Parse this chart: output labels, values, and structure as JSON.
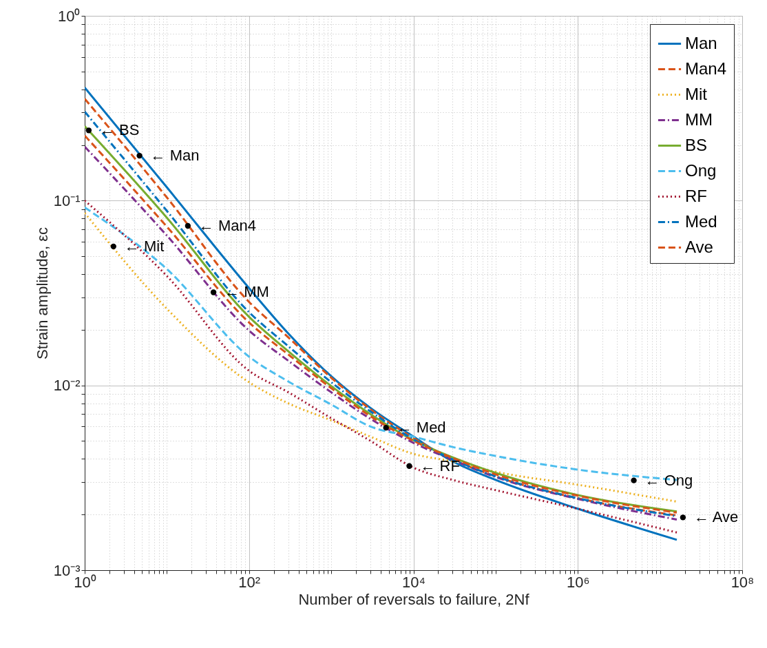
{
  "chart_data": {
    "type": "line",
    "xlabel": "Number of reversals to failure, 2Nf",
    "ylabel": "Strain amplitude, εc",
    "log": "xy",
    "grid": true,
    "legend": "top right",
    "x": [
      1,
      10,
      100,
      300,
      1000,
      3000,
      10000,
      30000,
      100000,
      1000000,
      16000000
    ],
    "series": [
      {
        "name": "Man",
        "color": "#0072bd",
        "line_style": "solid",
        "values": [
          0.409,
          0.118,
          0.0336,
          0.0191,
          0.0112,
          0.00755,
          0.00528,
          0.00388,
          0.00308,
          0.00215,
          0.00146
        ]
      },
      {
        "name": "Man4",
        "color": "#d95319",
        "line_style": "dashed",
        "values": [
          0.356,
          0.104,
          0.0283,
          0.0182,
          0.011,
          0.00742,
          0.00519,
          0.00398,
          0.00322,
          0.00245,
          0.00198
        ]
      },
      {
        "name": "Mit",
        "color": "#edb120",
        "line_style": "dotted",
        "values": [
          0.0858,
          0.026,
          0.0104,
          0.008,
          0.00647,
          0.00528,
          0.00426,
          0.00388,
          0.00341,
          0.0029,
          0.00235
        ]
      },
      {
        "name": "MM",
        "color": "#7e2f8e",
        "line_style": "dashdot",
        "values": [
          0.196,
          0.0647,
          0.0198,
          0.0136,
          0.00918,
          0.00659,
          0.00489,
          0.00395,
          0.00319,
          0.00243,
          0.00188
        ]
      },
      {
        "name": "BS",
        "color": "#77ac30",
        "line_style": "solid",
        "values": [
          0.253,
          0.0808,
          0.0235,
          0.0153,
          0.00992,
          0.00699,
          0.00505,
          0.00408,
          0.00336,
          0.00255,
          0.00208
        ]
      },
      {
        "name": "Ong",
        "color": "#4dbeee",
        "line_style": "dashed",
        "values": [
          0.0918,
          0.0426,
          0.0143,
          0.0105,
          0.00788,
          0.00599,
          0.00528,
          0.00464,
          0.00415,
          0.0035,
          0.00308
        ]
      },
      {
        "name": "RF",
        "color": "#a2142f",
        "line_style": "dotted",
        "values": [
          0.1,
          0.0391,
          0.012,
          0.00918,
          0.00664,
          0.00501,
          0.00359,
          0.00308,
          0.00271,
          0.00215,
          0.0016
        ]
      },
      {
        "name": "Med",
        "color": "#0072bd",
        "line_style": "dashdot",
        "values": [
          0.303,
          0.088,
          0.0249,
          0.0163,
          0.0104,
          0.00723,
          0.0051,
          0.00398,
          0.00322,
          0.00245,
          0.00196
        ]
      },
      {
        "name": "Ave",
        "color": "#d95319",
        "line_style": "dashed",
        "values": [
          0.225,
          0.0723,
          0.0219,
          0.0147,
          0.00966,
          0.00681,
          0.00501,
          0.00405,
          0.0033,
          0.00253,
          0.00205
        ]
      }
    ],
    "annotations": [
      {
        "text": "← BS",
        "x": 1.12,
        "y": 0.24
      },
      {
        "text": "← Man",
        "x": 4.64,
        "y": 0.175
      },
      {
        "text": "← Man4",
        "x": 18,
        "y": 0.073
      },
      {
        "text": "← Mit",
        "x": 2.24,
        "y": 0.0565
      },
      {
        "text": "← MM",
        "x": 36.9,
        "y": 0.0319
      },
      {
        "text": "← Med",
        "x": 4640,
        "y": 0.0059
      },
      {
        "text": "← RF",
        "x": 8900,
        "y": 0.00366
      },
      {
        "text": "← Ong",
        "x": 4800000,
        "y": 0.00306
      },
      {
        "text": "← Ave",
        "x": 19000000,
        "y": 0.00193
      }
    ],
    "xlim": [
      1,
      100000000
    ],
    "ylim": [
      0.001,
      1
    ],
    "xticks": [
      {
        "value": 1,
        "label": "10⁰"
      },
      {
        "value": 2,
        "label": null
      },
      {
        "value": 3,
        "label": null
      },
      {
        "value": 4,
        "label": null
      },
      {
        "value": 5,
        "label": null
      },
      {
        "value": 6,
        "label": null
      },
      {
        "value": 7,
        "label": null
      },
      {
        "value": 8,
        "label": null
      },
      {
        "value": 9,
        "label": null
      },
      {
        "value": 10,
        "label": null
      },
      {
        "value": 20,
        "label": null
      },
      {
        "value": 30,
        "label": null
      },
      {
        "value": 40,
        "label": null
      },
      {
        "value": 50,
        "label": null
      },
      {
        "value": 60,
        "label": null
      },
      {
        "value": 70,
        "label": null
      },
      {
        "value": 80,
        "label": null
      },
      {
        "value": 90,
        "label": null
      },
      {
        "value": 100,
        "label": "10²"
      },
      {
        "value": 200,
        "label": null
      },
      {
        "value": 300,
        "label": null
      },
      {
        "value": 400,
        "label": null
      },
      {
        "value": 500,
        "label": null
      },
      {
        "value": 600,
        "label": null
      },
      {
        "value": 700,
        "label": null
      },
      {
        "value": 800,
        "label": null
      },
      {
        "value": 900,
        "label": null
      },
      {
        "value": 1000,
        "label": null
      },
      {
        "value": 2000,
        "label": null
      },
      {
        "value": 3000,
        "label": null
      },
      {
        "value": 4000,
        "label": null
      },
      {
        "value": 5000,
        "label": null
      },
      {
        "value": 6000,
        "label": null
      },
      {
        "value": 7000,
        "label": null
      },
      {
        "value": 8000,
        "label": null
      },
      {
        "value": 9000,
        "label": null
      },
      {
        "value": 10000,
        "label": "10⁴"
      },
      {
        "value": 20000,
        "label": null
      },
      {
        "value": 30000,
        "label": null
      },
      {
        "value": 40000,
        "label": null
      },
      {
        "value": 50000,
        "label": null
      },
      {
        "value": 60000,
        "label": null
      },
      {
        "value": 70000,
        "label": null
      },
      {
        "value": 80000,
        "label": null
      },
      {
        "value": 90000,
        "label": null
      },
      {
        "value": 100000,
        "label": null
      },
      {
        "value": 200000,
        "label": null
      },
      {
        "value": 300000,
        "label": null
      },
      {
        "value": 400000,
        "label": null
      },
      {
        "value": 500000,
        "label": null
      },
      {
        "value": 600000,
        "label": null
      },
      {
        "value": 700000,
        "label": null
      },
      {
        "value": 800000,
        "label": null
      },
      {
        "value": 900000,
        "label": null
      },
      {
        "value": 1000000,
        "label": "10⁶"
      },
      {
        "value": 2000000,
        "label": null
      },
      {
        "value": 3000000,
        "label": null
      },
      {
        "value": 4000000,
        "label": null
      },
      {
        "value": 5000000,
        "label": null
      },
      {
        "value": 6000000,
        "label": null
      },
      {
        "value": 7000000,
        "label": null
      },
      {
        "value": 8000000,
        "label": null
      },
      {
        "value": 9000000,
        "label": null
      },
      {
        "value": 10000000,
        "label": null
      },
      {
        "value": 20000000,
        "label": null
      },
      {
        "value": 30000000,
        "label": null
      },
      {
        "value": 40000000,
        "label": null
      },
      {
        "value": 50000000,
        "label": null
      },
      {
        "value": 60000000,
        "label": null
      },
      {
        "value": 70000000,
        "label": null
      },
      {
        "value": 80000000,
        "label": null
      },
      {
        "value": 90000000,
        "label": null
      },
      {
        "value": 100000000,
        "label": "10⁸"
      }
    ],
    "yticks": [
      {
        "value": 0.001,
        "label": "10⁻³"
      },
      {
        "value": 0.002,
        "label": null
      },
      {
        "value": 0.003,
        "label": null
      },
      {
        "value": 0.004,
        "label": null
      },
      {
        "value": 0.005,
        "label": null
      },
      {
        "value": 0.006,
        "label": null
      },
      {
        "value": 0.007,
        "label": null
      },
      {
        "value": 0.008,
        "label": null
      },
      {
        "value": 0.009,
        "label": null
      },
      {
        "value": 0.01,
        "label": "10⁻²"
      },
      {
        "value": 0.02,
        "label": null
      },
      {
        "value": 0.03,
        "label": null
      },
      {
        "value": 0.04,
        "label": null
      },
      {
        "value": 0.05,
        "label": null
      },
      {
        "value": 0.06,
        "label": null
      },
      {
        "value": 0.07,
        "label": null
      },
      {
        "value": 0.08,
        "label": null
      },
      {
        "value": 0.09,
        "label": null
      },
      {
        "value": 0.1,
        "label": "10⁻¹"
      },
      {
        "value": 0.2,
        "label": null
      },
      {
        "value": 0.3,
        "label": null
      },
      {
        "value": 0.4,
        "label": null
      },
      {
        "value": 0.5,
        "label": null
      },
      {
        "value": 0.6,
        "label": null
      },
      {
        "value": 0.7,
        "label": null
      },
      {
        "value": 0.8,
        "label": null
      },
      {
        "value": 0.9,
        "label": null
      },
      {
        "value": 1,
        "label": "10⁰"
      }
    ]
  }
}
